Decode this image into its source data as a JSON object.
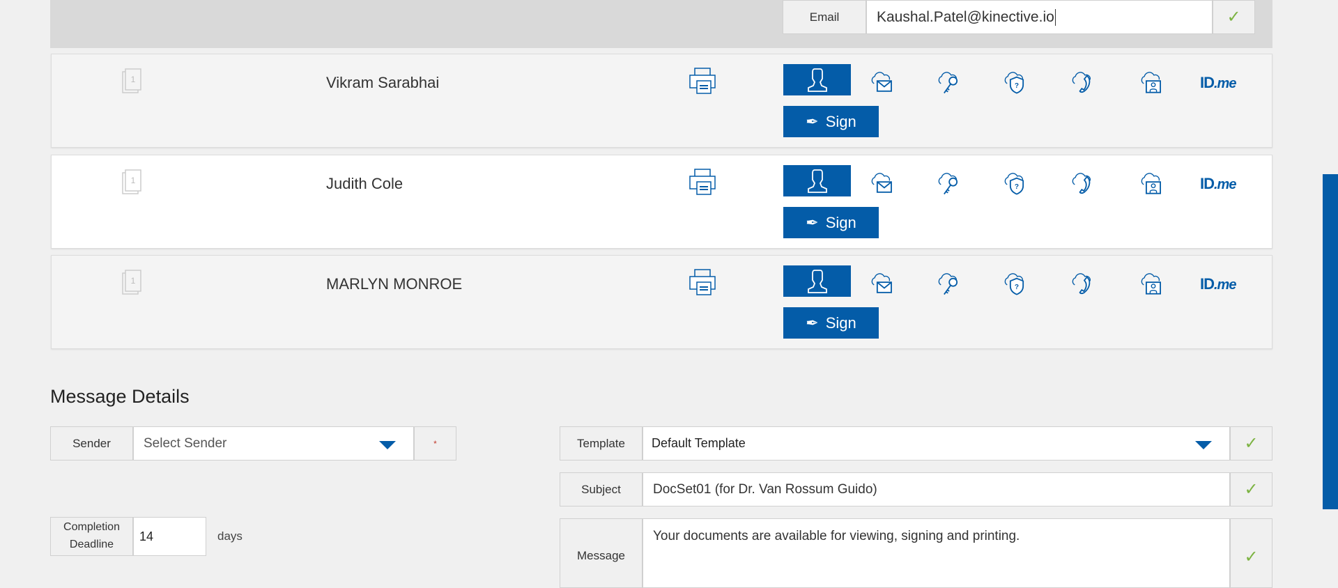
{
  "email": {
    "label": "Email",
    "value": "Kaushal.Patel@kinective.io",
    "status": "check"
  },
  "signers": [
    {
      "name": "Vikram Sarabhai",
      "doc_count": "1",
      "sign_label": "Sign",
      "idme_label": "ID",
      "idme_suffix": ".me",
      "bg": "#f4f4f4"
    },
    {
      "name": "Judith Cole",
      "doc_count": "1",
      "sign_label": "Sign",
      "idme_label": "ID",
      "idme_suffix": ".me",
      "bg": "#ffffff"
    },
    {
      "name": "MARLYN MONROE",
      "doc_count": "1",
      "sign_label": "Sign",
      "idme_label": "ID",
      "idme_suffix": ".me",
      "bg": "#f4f4f4"
    }
  ],
  "auth_icons": [
    "person-auth-icon",
    "cloud-email-icon",
    "cloud-key-icon",
    "cloud-security-question-icon",
    "cloud-phone-icon",
    "cloud-id-photo-icon",
    "idme-icon"
  ],
  "message_details": {
    "title": "Message Details",
    "sender_label": "Sender",
    "sender_placeholder": "Select Sender",
    "required_mark": "*",
    "template_label": "Template",
    "template_value": "Default Template",
    "subject_label": "Subject",
    "subject_value": "DocSet01 (for Dr. Van Rossum Guido)",
    "message_label": "Message",
    "message_value": "Your documents are available for viewing, signing and printing.",
    "deadline_label": "Completion Deadline",
    "deadline_value": "14",
    "deadline_unit": "days"
  },
  "colors": {
    "accent": "#045ca8",
    "check": "#7cb342"
  }
}
